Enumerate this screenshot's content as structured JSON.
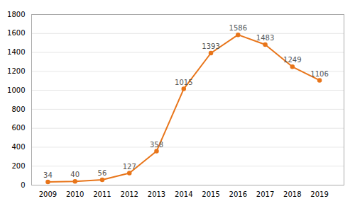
{
  "chart_data": {
    "type": "line",
    "x": [
      2009,
      2010,
      2011,
      2012,
      2013,
      2014,
      2015,
      2016,
      2017,
      2018,
      2019
    ],
    "values": [
      34,
      40,
      56,
      127,
      358,
      1015,
      1393,
      1586,
      1483,
      1249,
      1106
    ],
    "color": "#E8751A",
    "marker": "circle",
    "xlim": [
      2008.4,
      2019.9
    ],
    "xticks": [
      2009,
      2010,
      2011,
      2012,
      2013,
      2014,
      2015,
      2016,
      2017,
      2018,
      2019
    ],
    "ylim": [
      0,
      1800
    ],
    "yticks": [
      0,
      200,
      400,
      600,
      800,
      1000,
      1200,
      1400,
      1600,
      1800
    ],
    "grid": true,
    "data_labels": true
  }
}
